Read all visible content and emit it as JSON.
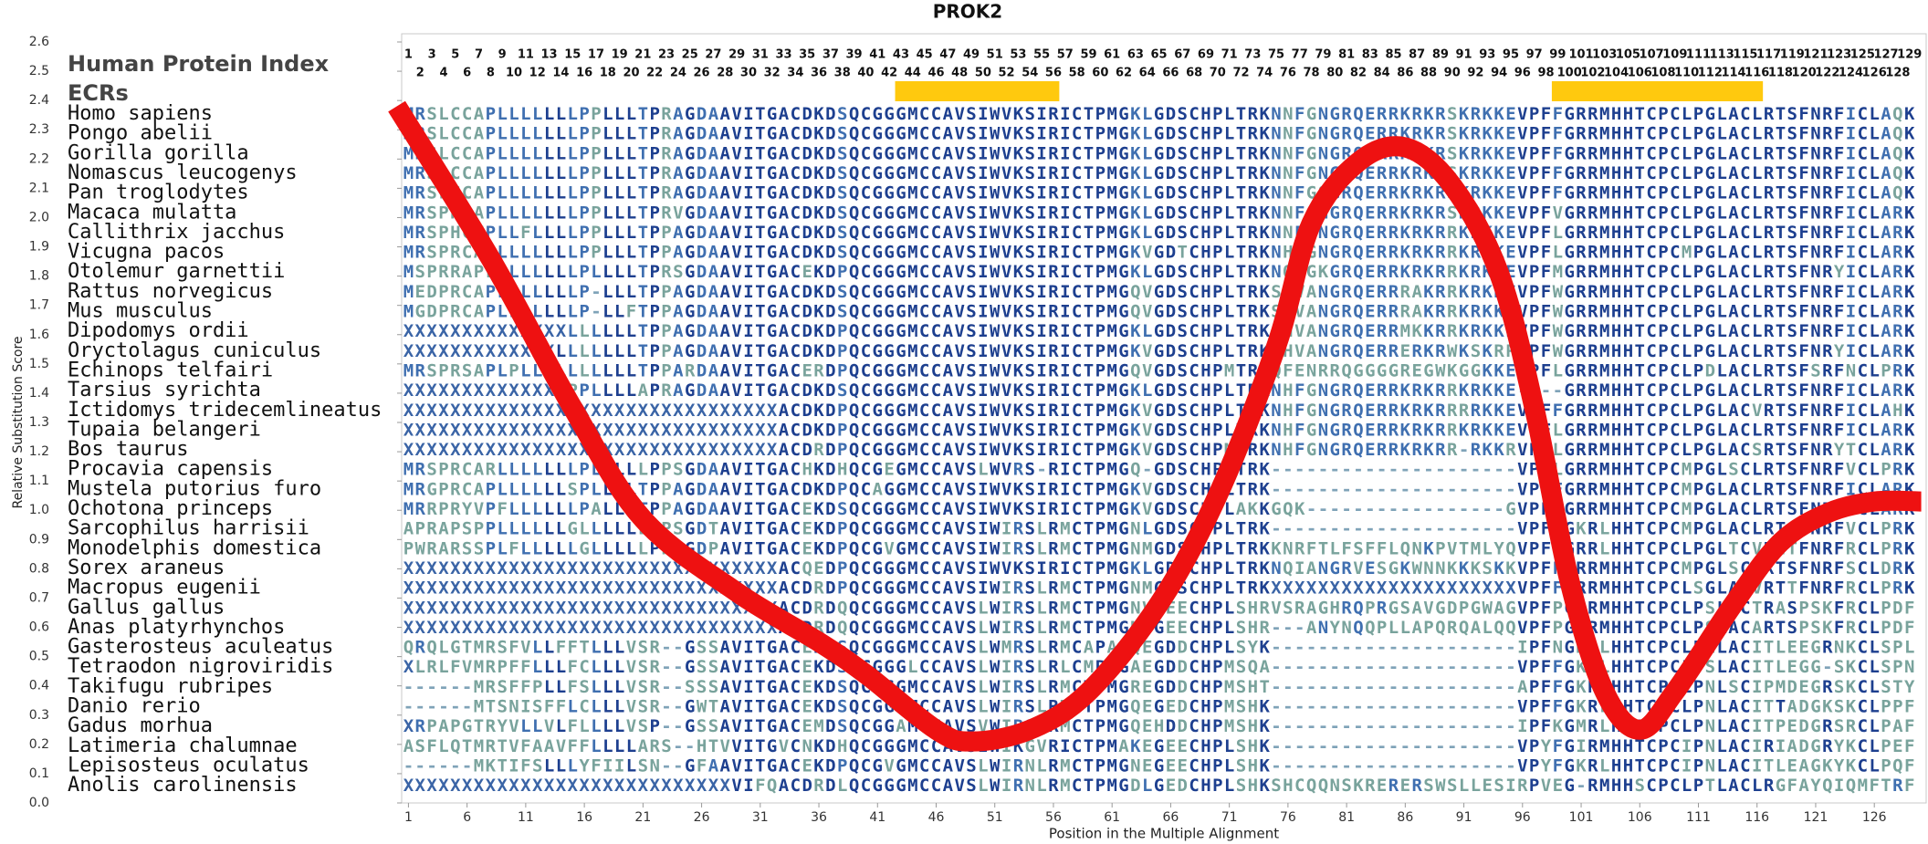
{
  "chart_data": {
    "type": "line",
    "title": "PROK2",
    "header": "Human Protein Index",
    "ecr_label": "ECRs",
    "xlabel": "Position in the Multiple Alignment",
    "ylabel": "Relative Substitution Score",
    "xlim": [
      0.5,
      130.5
    ],
    "ylim": [
      0,
      2.6
    ],
    "yticks": [
      {
        "value": 0,
        "label": "0.0"
      },
      0.1,
      0.2,
      0.3,
      0.4,
      0.5,
      0.6,
      0.7,
      0.8,
      0.9,
      {
        "value": 1,
        "label": "1.0"
      },
      1.1,
      1.2,
      1.3,
      1.4,
      1.5,
      1.6,
      1.7,
      1.8,
      1.9,
      {
        "value": 2,
        "label": "2.0"
      },
      2.1,
      2.2,
      2.3,
      2.4,
      2.5,
      2.6
    ],
    "xticks": [
      1,
      6,
      11,
      16,
      21,
      26,
      31,
      36,
      41,
      46,
      51,
      56,
      61,
      66,
      71,
      76,
      81,
      86,
      91,
      96,
      101,
      106,
      111,
      116,
      121,
      126
    ],
    "human_index": [
      1,
      2,
      3,
      4,
      5,
      6,
      7,
      8,
      9,
      10,
      11,
      12,
      13,
      14,
      15,
      16,
      17,
      18,
      19,
      20,
      21,
      22,
      23,
      24,
      25,
      26,
      27,
      28,
      29,
      30,
      31,
      32,
      33,
      34,
      35,
      36,
      37,
      38,
      39,
      40,
      41,
      42,
      43,
      44,
      45,
      46,
      47,
      48,
      49,
      50,
      51,
      52,
      53,
      54,
      55,
      56,
      57,
      58,
      59,
      60,
      61,
      62,
      63,
      64,
      65,
      66,
      67,
      68,
      69,
      70,
      71,
      72,
      73,
      74,
      75,
      76,
      77,
      78,
      79,
      80,
      81,
      82,
      83,
      84,
      85,
      86,
      87,
      88,
      89,
      90,
      91,
      92,
      93,
      94,
      95,
      96,
      97,
      98,
      99,
      100,
      101,
      102,
      103,
      104,
      105,
      106,
      107,
      108,
      109,
      110,
      111,
      112,
      113,
      114,
      115,
      116,
      117,
      118,
      119,
      120,
      121,
      122,
      123,
      124,
      125,
      126,
      127,
      128,
      129
    ],
    "ecrs": [
      [
        43,
        56
      ],
      [
        99,
        116
      ]
    ],
    "ecr_color": "#ffc90e",
    "color": "#ee1111",
    "x": [
      0,
      8,
      15,
      21,
      29,
      36,
      40,
      46,
      49,
      54,
      59,
      65,
      70,
      75,
      78,
      82,
      86,
      90,
      94,
      97,
      100,
      103,
      106,
      109,
      114,
      118,
      122,
      126,
      130
    ],
    "values": [
      2.38,
      1.86,
      1.35,
      0.97,
      0.72,
      0.55,
      0.44,
      0.25,
      0.21,
      0.25,
      0.38,
      0.68,
      1.05,
      1.56,
      1.98,
      2.19,
      2.24,
      2.11,
      1.81,
      1.35,
      0.76,
      0.38,
      0.25,
      0.38,
      0.68,
      0.89,
      0.99,
      1.03,
      1.03
    ],
    "species": [
      "Homo sapiens",
      "Pongo abelii",
      "Gorilla gorilla",
      "Nomascus leucogenys",
      "Pan troglodytes",
      "Macaca mulatta",
      "Callithrix jacchus",
      "Vicugna pacos",
      "Otolemur garnettii",
      "Rattus norvegicus",
      "Mus musculus",
      "Dipodomys ordii",
      "Oryctolagus cuniculus",
      "Echinops telfairi",
      "Tarsius syrichta",
      "Ictidomys tridecemlineatus",
      "Tupaia belangeri",
      "Bos taurus",
      "Procavia capensis",
      "Mustela putorius furo",
      "Ochotona princeps",
      "Sarcophilus harrisii",
      "Monodelphis domestica",
      "Sorex araneus",
      "Macropus eugenii",
      "Gallus gallus",
      "Anas platyrhynchos",
      "Gasterosteus aculeatus",
      "Tetraodon nigroviridis",
      "Takifugu rubripes",
      "Danio rerio",
      "Gadus morhua",
      "Latimeria chalumnae",
      "Lepisosteus oculatus",
      "Anolis carolinensis"
    ],
    "sequences": [
      "MRSLCCAPLLLLLLLPPLLLTPRAGDAAVITGACDKDSQCGGGMCCAVSIWVKSIRICTPMGKLGDSCHPLTRKNNFGNGRQERRKRKRSKRKKEVPFFGRRMHHTCPCLPGLACLRTSFNRFICLAQK",
      "MRSLCCAPLLLLLLLPPLLLTPRAGDAAVITGACDKDSQCGGGMCCAVSIWVKSIRICTPMGKLGDSCHPLTRKNNFGNGRQERRKRKRSKRKKEVPFFGRRMHHTCPCLPGLACLRTSFNRFICLAQK",
      "MRSLCCAPLLLLLLLPPLLLTPRAGDAAVITGACDKDSQCGGGMCCAVSIWVKSIRICTPMGKLGDSCHPLTRKNNFGNGRQERRKRKRSKRKKEVPFFGRRMHHTCPCLPGLACLRTSFNRFICLAQK",
      "MRSLCCAPLLLLLLLPPLLLTPRAGDAAVITGACDKDSQCGGGMCCAVSIWVKSIRICTPMGKLGDSCHPLTRKNNFGNGRQERRKRKRSKRKKEVPFFGRRMHHTCPCLPGLACLRTSFNRFICLAQK",
      "MRSLCCAPLLLLLLLPPLLLTPRAGDAAVITGACDKDSQCGGGMCCAVSIWVKSIRICTPMGKLGDSCHPLTRKNNFGSGRQERRKRKRSKRKKEVPFFGRRMHHTCPCLPGLACLRTSFNRFICLAQK",
      "MRSPRCAPLLLLLLLPPLLLTPRVGDAAVITGACDKDSQCGGGMCCAVSIWVKSIRICTPMGKLGDSCHPLTRKNNFGNGRQERRKRKRSKRKKEVPFVGRRMHHTCPCLPGLACLRTSFNRFICLARK",
      "MRSPHCTPLLFLLLLPPLLLTPPAGDAAVITGACDKDSQCGGGMCCAVSIWVKSIRICTPMGKLGDSCHPLTRKNNFENGRQERRKRKRRKRKKEVPFLGRRMHHTCPCLPGLACLRTSFNRFICLARK",
      "MRSPRCARLLLLLLLPPLLLTPPAGDAAVITGACDKDSQCGGGMCCAVSIWVKSIRICTPMGKVGDTCHPLTRKNHFGNGRQERRKRKRRKRKKEVPFLGRRMHHTCPCMPGLACLRTSFNRFICLARK",
      "MSPRRAPLLLLLLLLPLLLLTPRSGDAAVITGACEKDPQCGGGMCCAVSIWVKSIRICTPMGKLGDSCHPLTRKNQFGKGRQERRKRKRRKRKKEVPFMGRRMHHTCPCLPGLACLRTSFNRYICLARK",
      "MEDPRCAPLLLLLLLP-LLLTPPAGDAAVITGACDKDSQCGGGMCCAVSIWVKSIRICTPMGQVGDSCHPLTRKSHVANGRQERRRAKRRKRKKEVPFWGRRMHHTCPCLPGLACLRTSFNRFICLARK",
      "MGDPRCAPLLLLLLLP-LLFTPPAGDAAVITGACDKDSQCGGGMCCAVSIWVKSIRICTPMGQVGDSCHPLTRKSHVANGRQERRRAKRRKRKKEVPFWGRRMHHTCPCLPGLACLRTSFNRFICLARK",
      "XXXXXXXXXXXXXXLLLLLLTPPAGDAAVITGACDKDPQCGGGMCCAVSIWVKSIRICTPMGKLGDSCHPLTRKSHVANGRQERRMKKRRKRKKEVPFWGRRMHHTCPCLPGLACLRTSFNRFICLARK",
      "XXXXXXXXXXXXXLLLLLLLTPPAGDAAVITGACDKDPQCGGGMCCAVSIWVKSIRICTPMGKVGDSCHPLTRKSHVANGRQERRERKRWKSKRPVPFWGRRMHHTCPCLPGLACLRTSFNRYICLARK",
      "MRSPRSAPLPLLLLLLLLLLTPPARDAAVITGACERDPQCGGGMCCAVSIWVKSIRICTPMGQVGDSCHPMTRKQFENRRQGGGGREGWKGGKKEVPFLGRRMHHTCPCLPDLACLRTSFSRFNCLPRK",
      "XXXXXXXXXXXXXXPPLLLLAPRAGDAAVITGACDKDSQCGGGMCCAVSIWVKSIRICTPMGKLGDSCHPLTRKNHFGNGRQERRKRKRRKRKKE----GRRMHHTCPCLPGLACLRTSFNRFICLARK",
      "XXXXXXXXXXXXXXXXXXXXXXXXXXXXXXXXACDKDPQCGGGMCCAVSIWVKSIRICTPMGKVGDSCHPLTRKNHFGNGRQERRKRKRRRRKKEVPFFGRRMHHTCPCLPGLACVRTSFNRFICLAHK",
      "XXXXXXXXXXXXXXXXXXXXXXXXXXXXXXXXACDKDPQCGGGMCCAVSIWVKSIRICTPMGKVGDSCHPLTRKNHFGNGRQERRKRKRRKRKKEVPFLGRRMHHTCPCLPGLACLRTSFNRFICLARK",
      "XXXXXXXXXXXXXXXXXXXXXXXXXXXXXXXXACDRDPQCGGGMCCAVSIWVKSIRICTPMGKVGDSCHPMTRKNHFGNGRQERRKRKRR-RKKRVPFLGRRMHHTCPCLPGLACSRTSFNRYTCLARK",
      "MRSPRCARLLLLLLLPLLLLLPPSGDAAVITGACHKDHQCGEGMCCAVSLWVRS-RICTPMGQ-GDSCHPLTRK---------------------VPFLGRRMHHTCPCMPGLSCLRTSFNRFVCLPRK",
      "MRGPRCAPLLLLLLSPLLLLTPPAGDAAVITGACDKDPQCAGGMCCAVSIWVKSIRICTPMGKVGDSCHPLTRK---------------------VPFFGRRMHHTCPCMPGLACLRTSFNRFICLARK",
      "MRRPRYVPFLLLLLLPALLLTPPAGDAAVITGACEKDSQCGGGMCCAVSIWVKSIRICTPMGKVGDSCHPLAKKGQK-----------------GVPFFGRRMHHTCPCMPGLACLRTSFNRYICLARK",
      "APRAPSPPLLLLLLGLLLLLLPPSGDTAVITGACEKDPQCGGGMCCAVSIWIRSLRMCTPMGNLGDSCHPLTRK---------------------VPFFGKRLHHTCPCMPGLACLRTSFNRFVCLPRK",
      "PWRARSSPLFLLLLLGLLLLLPPSGDPAVITGACEKDPQCGVGMCCAVSIWIRSLRMCTPMGNMGDSCHPLTRKKNRFTLFSFFLQNKPVTMLYQVPFFGRRLHHTCPCLPGLTCVRITFNRFRCLPRK",
      "XXXXXXXXXXXXXXXXXXXXXXXXXXXXXXXXACQEDPQCGGGMCCAVSIWVKSIRICTPMGKLGDSCHPLTRKNQIANGRVESGKWNNKKKSKKVPFFGRRMHHTCPCMPGLSCLRTSFNRFSCLDRK",
      "XXXXXXXXXXXXXXXXXXXXXXXXXXXXXXXXACDRDPQCGGGMCCAVSIWIRSLRMCTPMGNMGDSCHPLTRKXXXXXXXXXXXXXXXXXXXXXVPFFGRRMHHTCPCLSGLACVRTTFNRFRCLPRK",
      "XXXXXXXXXXXXXXXXXXXXXXXXXXXXXXXXACDRDQQCGGGMCCAVSLWIRSLRMCTPMGNVGEECHPLSHRVSRAGHRQPRGSAVGDPGWAGVPFPGRRMHHTCPCLPSLACTRASPSKFRCLPDF",
      "XXXXXXXXXXXXXXXXXXXXXXXXXXXXXXXXACDRDQQCGGGMCCAVSLWIRSLRMCTPMGNVGEECHPLSHR---ANYNQQPLLAPQRQALQQVPFPGRRMHHTCPCLPSLACARTSPSKFRCLPDF",
      "QRQLGTMRSFVLLFFTLLLVSR--GSSAVITGACEKDSQCGGGMCCAVSLWMRSLRMCAPAGQEGDDCHPLSYK---------------------IPFNGKRLHHTCPCLPNLACITLEEGRNKCLSPL",
      "XLRLFVMRPFFLLLFCLLLVSR--GSSAVITGACEKDSQCGGGLCCAVSLWIRSLRLCMPMGAEGDDCHPMSQA---------------------VPFFGKRLHHTCPCLPSLACITLEGG-SKCLSPN",
      "------MRSFFPLLFSLLLVSR--SSSAVITGACEKDSQCGGGMCCAVSLWIRSLRMCTPMGREGDDCHPMSHT---------------------APFFGKRLHHTCPCLPNLSCIPMDEGRSKCLSTY",
      "------MTSNISFFLCLLLVSR--GWTAVITGACEKDSQCGGGMCCAVSLWIRSLRMCTPMGQEGEDCHPMSHK---------------------VPFFGKRLHHTCPCLPNLACITTADGKSKCLPPF",
      "XRPAPGTRYVLLVLFLLLLVSP--GSSAVITGACEMDSQCGGAMCCAVSVWIRSLRMCTPMGQEHDDCHPMSHK---------------------IPFKGMRLHHTCPCLPNLACITPEDGRSRCLPAF",
      "ASFLQTMRTVFAAVFFLLLLARS--HTVVITGVCNKDHQCGGGMCCAVSIWIKGVRICTPMAKEGEECHPLSHK---------------------VPYFGIRMHHTCPCIPNLACIRIADGRYKCLPEF",
      "------MKTIFSLLLYFIILSN--GFAAVITGACEKDPQCGVGMCCAVSLWIRNLRMCTPMGNEGEECHPLSHK---------------------VPYFGKRLHHTCPCIPNLACITLEAGKYKCLPQF",
      "XXXXXXXXXXXXXXXXXXXXXXXXXXXXVIFQACDRDLQCGGGMCCAVSLWIRNLRMCTPMGDLGEDCHPLSHKSHCQQNSKRERERSWSLLESIRPVEG-RMHHSCPCLPTLACLRGFAYQIQMFTRF"
    ]
  }
}
